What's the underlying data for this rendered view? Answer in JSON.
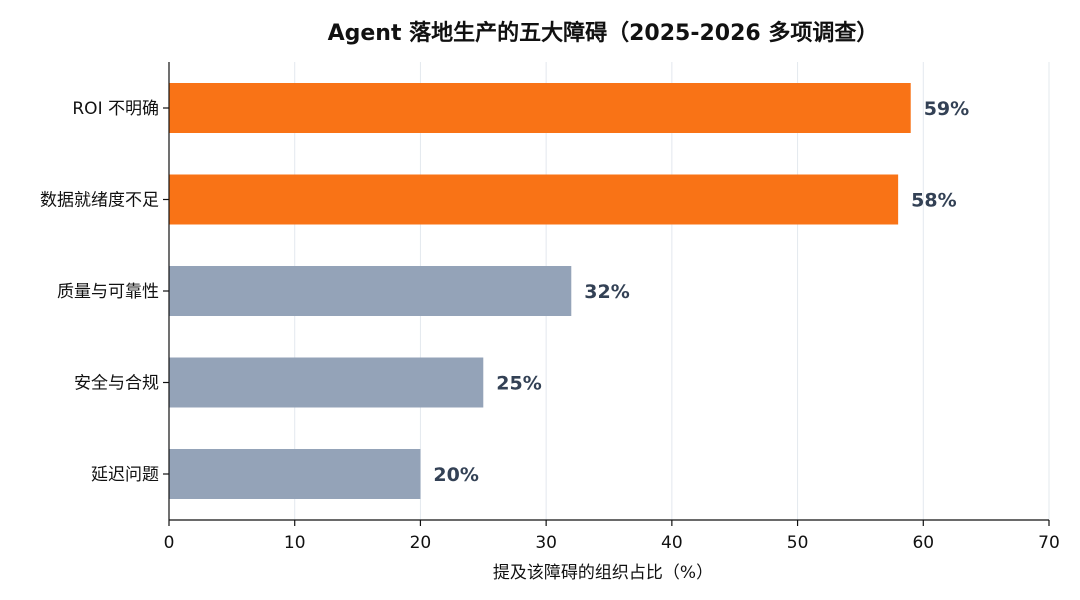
{
  "chart_data": {
    "type": "bar",
    "orientation": "horizontal",
    "title": "Agent 落地生产的五大障碍（2025-2026 多项调查）",
    "xlabel": "提及该障碍的组织占比（%）",
    "ylabel": "",
    "categories": [
      "ROI 不明确",
      "数据就绪度不足",
      "质量与可靠性",
      "安全与合规",
      "延迟问题"
    ],
    "values": [
      59,
      58,
      32,
      25,
      20
    ],
    "value_labels": [
      "59%",
      "58%",
      "32%",
      "25%",
      "20%"
    ],
    "bar_colors": [
      "#f97316",
      "#f97316",
      "#94a3b8",
      "#94a3b8",
      "#94a3b8"
    ],
    "value_label_color": "#334155",
    "xlim": [
      0,
      70
    ],
    "xticks": [
      0,
      10,
      20,
      30,
      40,
      50,
      60,
      70
    ],
    "xtick_labels": [
      "0",
      "10",
      "20",
      "30",
      "40",
      "50",
      "60",
      "70"
    ],
    "grid": "vertical"
  }
}
